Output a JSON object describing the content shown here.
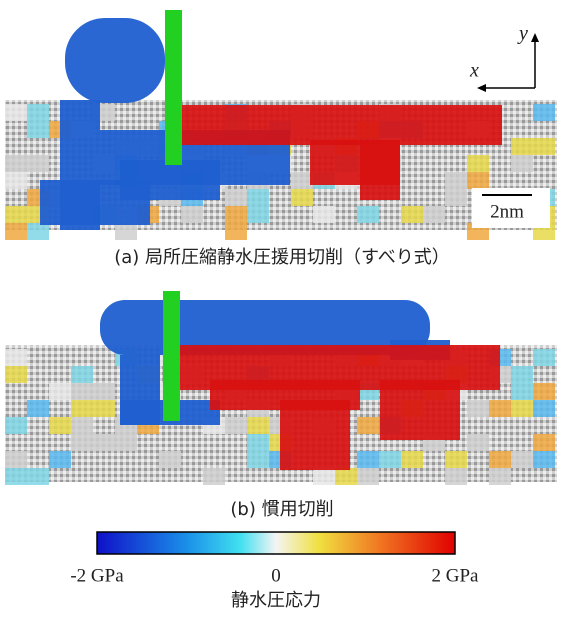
{
  "panel_a": {
    "axis_y": "y",
    "axis_x": "x",
    "scale_bar": "2nm",
    "caption": "(a) 局所圧縮静水圧援用切削（すべり式）"
  },
  "panel_b": {
    "caption": "(b) 慣用切削"
  },
  "colorbar": {
    "lim": [
      -2,
      2
    ],
    "ticks": [
      {
        "value": -2,
        "label": "-2 GPa"
      },
      0,
      {
        "value": 2,
        "label": "2 GPa"
      }
    ],
    "label": "静水圧応力"
  }
}
